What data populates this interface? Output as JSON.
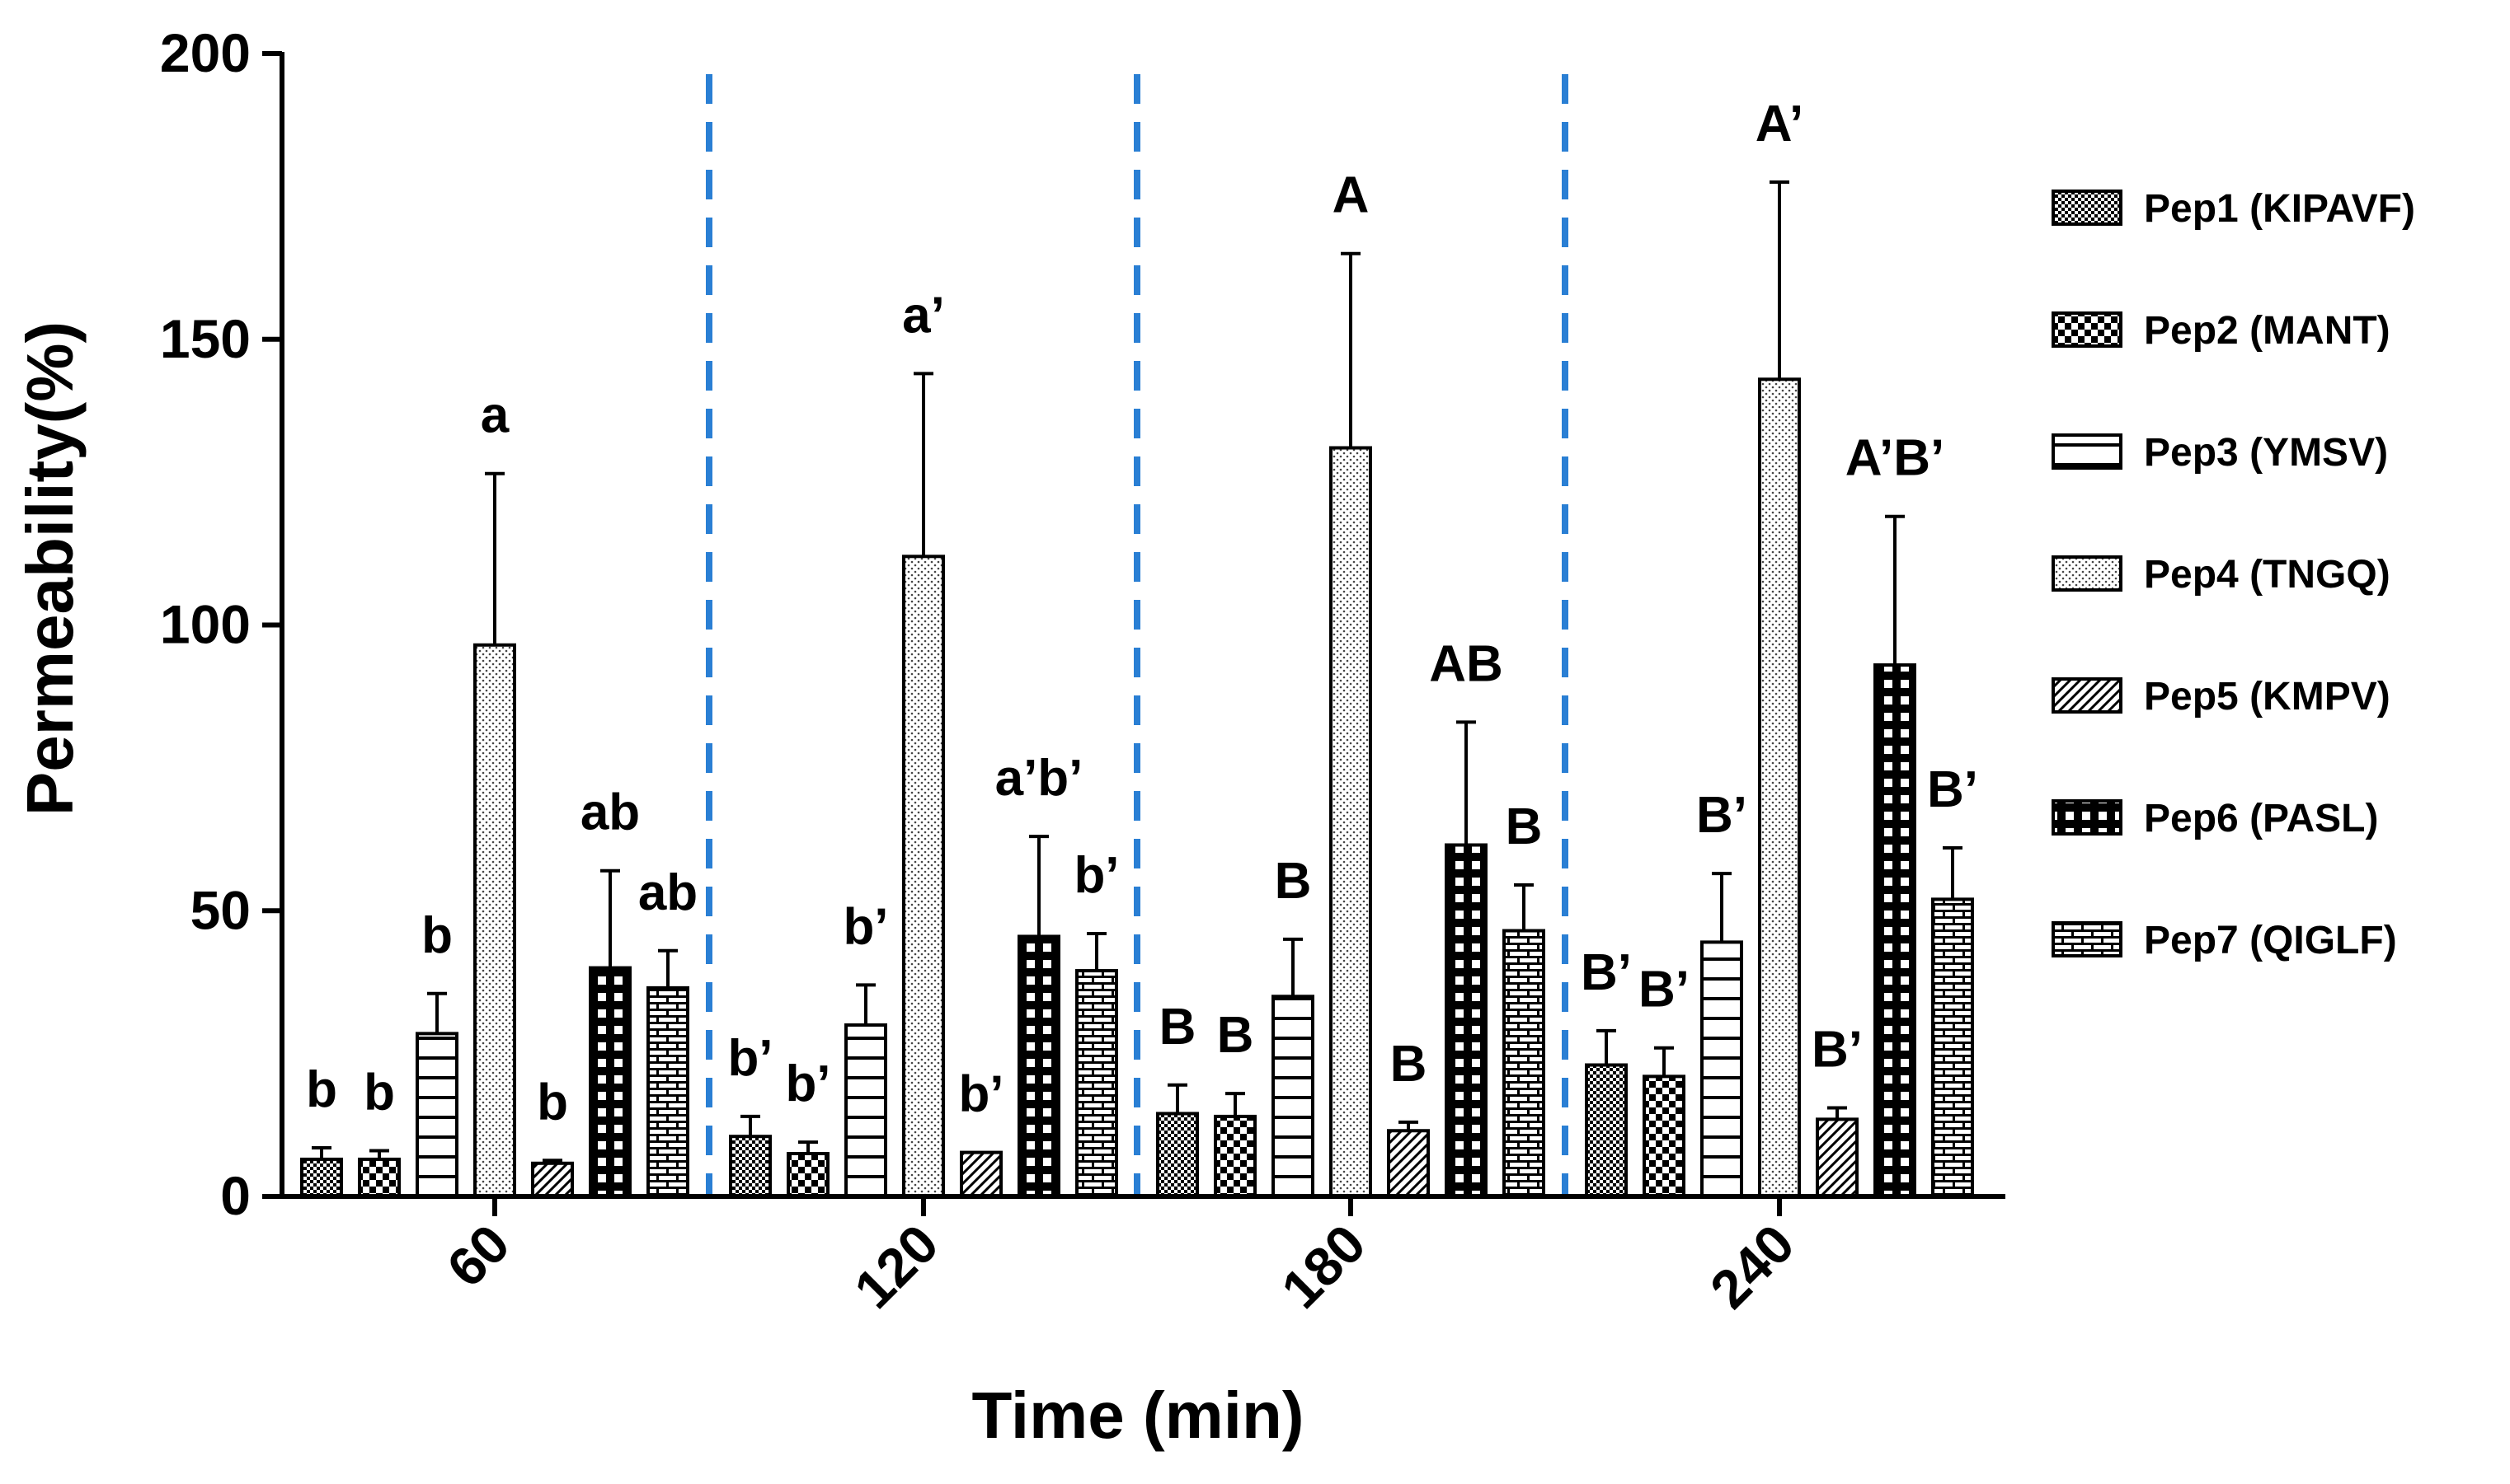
{
  "chart_data": {
    "type": "bar",
    "title": "",
    "xlabel": "Time (min)",
    "ylabel": "Permeability(%)",
    "ylim": [
      0,
      200
    ],
    "yticks": [
      "0",
      "50",
      "100",
      "150",
      "200"
    ],
    "categories": [
      "60",
      "120",
      "180",
      "240"
    ],
    "legend_position": "right",
    "group_separator": "dashed blue vertical lines between time groups",
    "series": [
      {
        "name": "Pep1 (KIPAVF)",
        "pattern": "fine-checker",
        "values": [
          6.5,
          10.5,
          14.5,
          23
        ],
        "errors": [
          2,
          3.5,
          5,
          6
        ],
        "labels": [
          "b",
          "b’",
          "B",
          "B’"
        ]
      },
      {
        "name": "Pep2 (MANT)",
        "pattern": "coarse-checker",
        "values": [
          6.5,
          7.5,
          14,
          21
        ],
        "errors": [
          1.5,
          2,
          4,
          5
        ],
        "labels": [
          "b",
          "b’",
          "B",
          "B’"
        ]
      },
      {
        "name": "Pep3 (YMSV)",
        "pattern": "horizontal",
        "values": [
          28.5,
          30,
          35,
          44.5
        ],
        "errors": [
          7,
          7,
          10,
          12
        ],
        "labels": [
          "b",
          "b’",
          "B",
          "B’"
        ]
      },
      {
        "name": "Pep4 (TNGQ)",
        "pattern": "dots",
        "values": [
          96.5,
          112,
          131,
          143
        ],
        "errors": [
          30,
          32,
          34,
          34.5
        ],
        "labels": [
          "a",
          "a’",
          "A",
          "A’"
        ]
      },
      {
        "name": "Pep5 (KMPV)",
        "pattern": "diagonal",
        "values": [
          5.8,
          7.7,
          11.5,
          13.5
        ],
        "errors": [
          0.5,
          0,
          1.5,
          2
        ],
        "labels": [
          "b",
          "b’",
          "B",
          "B’"
        ]
      },
      {
        "name": "Pep6 (PASL)",
        "pattern": "grid",
        "values": [
          40,
          45.5,
          61.5,
          93
        ],
        "errors": [
          17,
          17.5,
          21.5,
          26
        ],
        "labels": [
          "ab",
          "a’b’",
          "AB",
          "A’B’"
        ]
      },
      {
        "name": "Pep7 (QIGLF)",
        "pattern": "brick",
        "values": [
          36.5,
          39.5,
          46.5,
          52
        ],
        "errors": [
          6.5,
          6.5,
          8,
          9
        ],
        "labels": [
          "ab",
          "b’",
          "B",
          "B’"
        ]
      }
    ]
  }
}
